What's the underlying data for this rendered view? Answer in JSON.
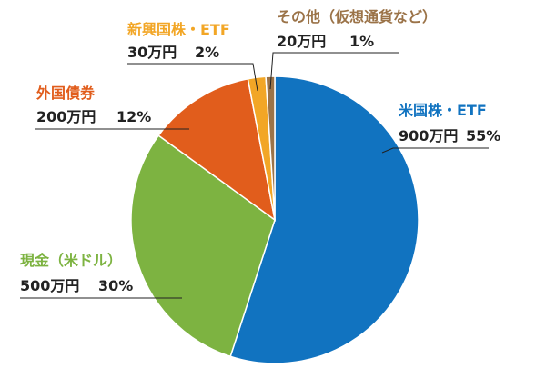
{
  "chart_data": {
    "type": "pie",
    "slices": [
      {
        "label": "米国株・ETF",
        "amount": "900万円",
        "percent_label": "55%",
        "value": 55,
        "color": "#1173c0"
      },
      {
        "label": "現金（米ドル）",
        "amount": "500万円",
        "percent_label": "30%",
        "value": 30,
        "color": "#7db341"
      },
      {
        "label": "外国債券",
        "amount": "200万円",
        "percent_label": "12%",
        "value": 12,
        "color": "#e15d1c"
      },
      {
        "label": "新興国株・ETF",
        "amount": "30万円",
        "percent_label": "2%",
        "value": 2,
        "color": "#f2a626"
      },
      {
        "label": "その他（仮想通貨など）",
        "amount": "20万円",
        "percent_label": "1%",
        "value": 1,
        "color": "#9b7348"
      }
    ]
  }
}
